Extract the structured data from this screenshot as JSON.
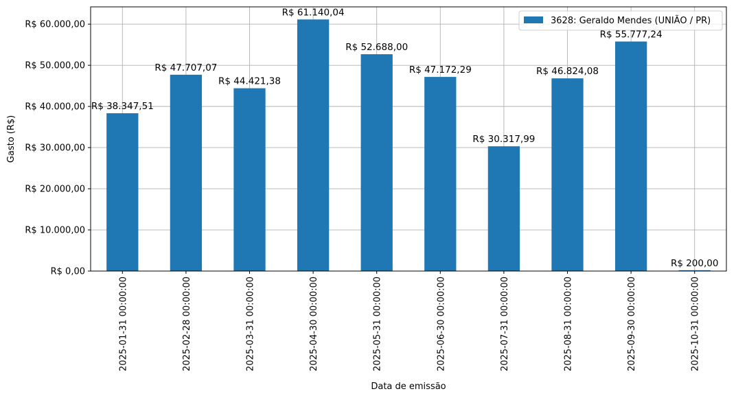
{
  "chart_data": {
    "type": "bar",
    "title": "",
    "xlabel": "Data de emissão",
    "ylabel": "Gasto (R$)",
    "categories": [
      "2025-01-31 00:00:00",
      "2025-02-28 00:00:00",
      "2025-03-31 00:00:00",
      "2025-04-30 00:00:00",
      "2025-05-31 00:00:00",
      "2025-06-30 00:00:00",
      "2025-07-31 00:00:00",
      "2025-08-31 00:00:00",
      "2025-09-30 00:00:00",
      "2025-10-31 00:00:00"
    ],
    "series": [
      {
        "name": "3628: Geraldo Mendes (UNIÃO / PR)",
        "color": "#1f77b4",
        "values": [
          38347.51,
          47707.07,
          44421.38,
          61140.04,
          52688.0,
          47172.29,
          30317.99,
          46824.08,
          55777.24,
          200.0
        ]
      }
    ],
    "data_labels": [
      "R$ 38.347,51",
      "R$ 47.707,07",
      "R$ 44.421,38",
      "R$ 61.140,04",
      "R$ 52.688,00",
      "R$ 47.172,29",
      "R$ 30.317,99",
      "R$ 46.824,08",
      "R$ 55.777,24",
      "R$ 200,00"
    ],
    "yticks": [
      0,
      10000,
      20000,
      30000,
      40000,
      50000,
      60000
    ],
    "ytick_labels": [
      "R$ 0,00",
      "R$ 10.000,00",
      "R$ 20.000,00",
      "R$ 30.000,00",
      "R$ 40.000,00",
      "R$ 50.000,00",
      "R$ 60.000,00"
    ],
    "ylim": [
      0,
      64197
    ],
    "grid": true,
    "legend_position": "top-right"
  }
}
